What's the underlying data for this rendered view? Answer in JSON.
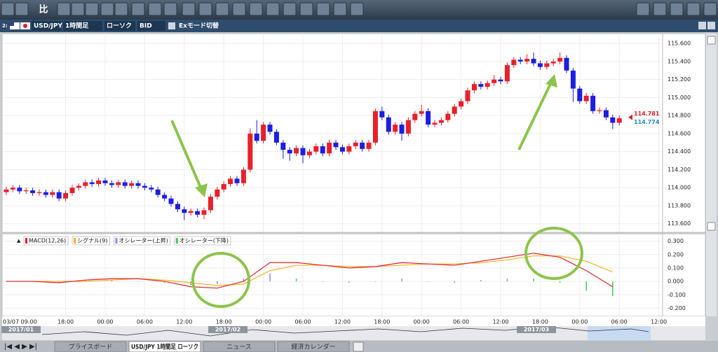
{
  "toolbar": {
    "compare": "比"
  },
  "header": {
    "index": "2:",
    "symbol": "USD/JPY",
    "timeframe": "1時間足",
    "chart_type": "ローソク",
    "side": "BID",
    "ex_mode": "Exモード切替"
  },
  "chart": {
    "type": "candlestick",
    "ylim": [
      113.52,
      115.71
    ],
    "yticks": [
      {
        "value": 113.6,
        "label": "113.600"
      },
      {
        "value": 113.8,
        "label": "113.800"
      },
      {
        "value": 114.0,
        "label": "114.000"
      },
      {
        "value": 114.2,
        "label": "114.200"
      },
      {
        "value": 114.4,
        "label": "114.400"
      },
      {
        "value": 114.6,
        "label": "114.600"
      },
      {
        "value": 114.8,
        "label": "114.800"
      },
      {
        "value": 115.0,
        "label": "115.000"
      },
      {
        "value": 115.2,
        "label": "115.200"
      },
      {
        "value": 115.4,
        "label": "115.400"
      },
      {
        "value": 115.6,
        "label": "115.600"
      }
    ],
    "up_color": "#e8202a",
    "down_color": "#1c1ee0",
    "price_markers": [
      {
        "value": 114.781,
        "color": "#e0202a"
      },
      {
        "value": 114.774,
        "color": "#1a8ad0"
      }
    ],
    "candles": [
      [
        113.95,
        114.01,
        113.92,
        113.98
      ],
      [
        113.98,
        114.03,
        113.95,
        114.0
      ],
      [
        114.0,
        114.03,
        113.93,
        113.96
      ],
      [
        113.96,
        114.0,
        113.93,
        113.97
      ],
      [
        113.97,
        114.0,
        113.91,
        113.94
      ],
      [
        113.94,
        113.98,
        113.91,
        113.95
      ],
      [
        113.95,
        113.98,
        113.89,
        113.92
      ],
      [
        113.92,
        113.98,
        113.89,
        113.95
      ],
      [
        113.95,
        113.98,
        113.85,
        113.88
      ],
      [
        113.88,
        113.97,
        113.85,
        113.94
      ],
      [
        113.94,
        114.03,
        113.91,
        114.0
      ],
      [
        114.0,
        114.05,
        113.97,
        114.02
      ],
      [
        114.02,
        114.09,
        113.99,
        114.06
      ],
      [
        114.06,
        114.09,
        114.01,
        114.04
      ],
      [
        114.04,
        114.11,
        114.01,
        114.08
      ],
      [
        114.08,
        114.11,
        114.02,
        114.05
      ],
      [
        114.05,
        114.08,
        114.0,
        114.03
      ],
      [
        114.03,
        114.09,
        114.0,
        114.06
      ],
      [
        114.06,
        114.09,
        113.99,
        114.02
      ],
      [
        114.02,
        114.08,
        113.99,
        114.05
      ],
      [
        114.05,
        114.08,
        113.99,
        114.02
      ],
      [
        114.02,
        114.05,
        113.97,
        114.0
      ],
      [
        114.0,
        114.03,
        113.95,
        113.98
      ],
      [
        113.98,
        114.01,
        113.89,
        113.92
      ],
      [
        113.92,
        113.95,
        113.85,
        113.88
      ],
      [
        113.88,
        113.91,
        113.79,
        113.82
      ],
      [
        113.82,
        113.85,
        113.73,
        113.76
      ],
      [
        113.76,
        113.79,
        113.64,
        113.72
      ],
      [
        113.72,
        113.77,
        113.69,
        113.74
      ],
      [
        113.74,
        113.77,
        113.67,
        113.7
      ],
      [
        113.7,
        113.78,
        113.65,
        113.75
      ],
      [
        113.75,
        113.93,
        113.72,
        113.9
      ],
      [
        113.9,
        114.01,
        113.87,
        113.98
      ],
      [
        113.98,
        114.07,
        113.95,
        114.04
      ],
      [
        114.04,
        114.13,
        114.01,
        114.1
      ],
      [
        114.1,
        114.13,
        114.02,
        114.05
      ],
      [
        114.05,
        114.23,
        114.02,
        114.2
      ],
      [
        114.2,
        114.66,
        114.17,
        114.6
      ],
      [
        114.6,
        114.75,
        114.49,
        114.52
      ],
      [
        114.52,
        114.73,
        114.49,
        114.7
      ],
      [
        114.7,
        114.73,
        114.59,
        114.62
      ],
      [
        114.62,
        114.65,
        114.47,
        114.5
      ],
      [
        114.5,
        114.53,
        114.32,
        114.42
      ],
      [
        114.42,
        114.45,
        114.3,
        114.38
      ],
      [
        114.38,
        114.47,
        114.35,
        114.44
      ],
      [
        114.44,
        114.47,
        114.27,
        114.36
      ],
      [
        114.36,
        114.43,
        114.33,
        114.4
      ],
      [
        114.4,
        114.49,
        114.37,
        114.46
      ],
      [
        114.46,
        114.49,
        114.35,
        114.38
      ],
      [
        114.38,
        114.53,
        114.35,
        114.5
      ],
      [
        114.5,
        114.53,
        114.42,
        114.45
      ],
      [
        114.45,
        114.48,
        114.37,
        114.4
      ],
      [
        114.4,
        114.49,
        114.37,
        114.46
      ],
      [
        114.46,
        114.53,
        114.43,
        114.5
      ],
      [
        114.5,
        114.53,
        114.4,
        114.43
      ],
      [
        114.43,
        114.53,
        114.4,
        114.5
      ],
      [
        114.5,
        114.88,
        114.47,
        114.85
      ],
      [
        114.85,
        114.9,
        114.75,
        114.78
      ],
      [
        114.78,
        114.81,
        114.59,
        114.62
      ],
      [
        114.62,
        114.73,
        114.59,
        114.7
      ],
      [
        114.7,
        114.73,
        114.52,
        114.6
      ],
      [
        114.6,
        114.78,
        114.57,
        114.75
      ],
      [
        114.75,
        114.85,
        114.72,
        114.82
      ],
      [
        114.82,
        114.92,
        114.79,
        114.85
      ],
      [
        114.85,
        114.88,
        114.67,
        114.7
      ],
      [
        114.7,
        114.75,
        114.67,
        114.72
      ],
      [
        114.72,
        114.78,
        114.69,
        114.75
      ],
      [
        114.75,
        114.85,
        114.72,
        114.82
      ],
      [
        114.82,
        114.93,
        114.79,
        114.9
      ],
      [
        114.9,
        114.99,
        114.87,
        114.96
      ],
      [
        114.96,
        115.11,
        114.93,
        115.08
      ],
      [
        115.08,
        115.18,
        115.05,
        115.15
      ],
      [
        115.15,
        115.18,
        115.09,
        115.12
      ],
      [
        115.12,
        115.19,
        115.09,
        115.16
      ],
      [
        115.16,
        115.25,
        115.13,
        115.2
      ],
      [
        115.2,
        115.23,
        115.15,
        115.18
      ],
      [
        115.18,
        115.39,
        115.15,
        115.36
      ],
      [
        115.36,
        115.45,
        115.33,
        115.42
      ],
      [
        115.42,
        115.45,
        115.37,
        115.4
      ],
      [
        115.4,
        115.48,
        115.37,
        115.43
      ],
      [
        115.43,
        115.5,
        115.35,
        115.38
      ],
      [
        115.38,
        115.41,
        115.31,
        115.34
      ],
      [
        115.34,
        115.41,
        115.31,
        115.38
      ],
      [
        115.38,
        115.43,
        115.35,
        115.4
      ],
      [
        115.4,
        115.5,
        115.37,
        115.44
      ],
      [
        115.44,
        115.47,
        115.27,
        115.3
      ],
      [
        115.3,
        115.33,
        114.95,
        115.1
      ],
      [
        115.1,
        115.13,
        114.93,
        114.96
      ],
      [
        114.96,
        115.05,
        114.93,
        115.02
      ],
      [
        115.02,
        115.05,
        114.82,
        114.85
      ],
      [
        114.85,
        114.89,
        114.82,
        114.86
      ],
      [
        114.86,
        114.89,
        114.75,
        114.78
      ],
      [
        114.78,
        114.81,
        114.65,
        114.72
      ],
      [
        114.72,
        114.8,
        114.69,
        114.77
      ]
    ]
  },
  "macd": {
    "ylim": [
      -0.25,
      0.35
    ],
    "yticks": [
      {
        "value": -0.2,
        "label": "-0.200"
      },
      {
        "value": -0.1,
        "label": "-0.100"
      },
      {
        "value": 0,
        "label": "0.000"
      },
      {
        "value": 0.1,
        "label": "0.100"
      },
      {
        "value": 0.2,
        "label": "0.200"
      },
      {
        "value": 0.3,
        "label": "0.300"
      }
    ],
    "legend": [
      {
        "name": "MACD(12,26)",
        "color": "#e8202a"
      },
      {
        "name": "シグナル(9)",
        "color": "#f5b21c"
      },
      {
        "name": "オシレーター(上昇)",
        "color": "#8e8ef0"
      },
      {
        "name": "オシレーター(下降)",
        "color": "#3ecf4a"
      }
    ],
    "x": [
      0,
      4,
      8,
      12,
      16,
      20,
      24,
      28,
      32,
      36,
      40,
      44,
      48,
      52,
      56,
      60,
      64,
      68,
      72,
      76,
      80,
      84,
      88,
      92
    ],
    "macd": [
      0,
      0,
      -0.01,
      0.01,
      0.02,
      0.02,
      0,
      -0.04,
      -0.05,
      0,
      0.14,
      0.14,
      0.12,
      0.1,
      0.11,
      0.14,
      0.13,
      0.12,
      0.15,
      0.18,
      0.21,
      0.18,
      0.08,
      -0.04
    ],
    "signal": [
      0,
      0,
      0,
      0,
      0.01,
      0.02,
      0.01,
      -0.01,
      -0.03,
      -0.02,
      0.08,
      0.12,
      0.12,
      0.11,
      0.11,
      0.12,
      0.13,
      0.13,
      0.14,
      0.16,
      0.19,
      0.19,
      0.15,
      0.07
    ],
    "oscillator": [
      0,
      0,
      -0.01,
      0.01,
      0.01,
      0,
      -0.01,
      -0.03,
      -0.02,
      0.02,
      0.06,
      0.02,
      0,
      -0.01,
      0,
      0.02,
      0,
      -0.01,
      0.01,
      0.02,
      0.02,
      -0.01,
      -0.07,
      -0.11
    ]
  },
  "time_labels": [
    "03/07 09:00",
    "18:00",
    "00:00",
    "06:00",
    "12:00",
    "18:00",
    "00:00",
    "06:00",
    "12:00",
    "18:00",
    "00:00",
    "06:00",
    "12:00",
    "18:00",
    "00:00",
    "06:00",
    "12:00"
  ],
  "timeline": [
    "2017/01",
    "2017/02",
    "2017/03"
  ],
  "tabs": [
    "プライスボード",
    "USD/JPY 1時間足 ローソク",
    "ニュース",
    "経済カレンダー"
  ]
}
